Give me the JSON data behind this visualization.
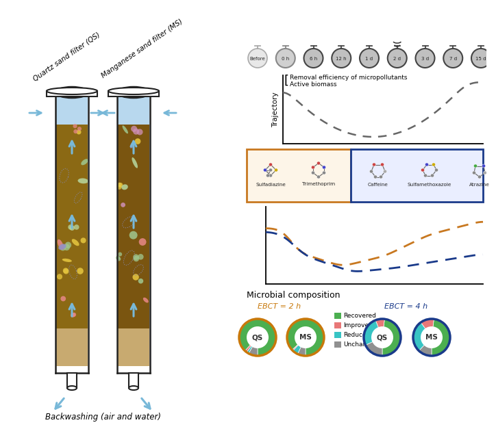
{
  "bg_color": "#ffffff",
  "filter_labels": [
    "Quartz sand filter (QS)",
    "Manganese sand filter (MS)"
  ],
  "backwash_label": "Backwashing (air and water)",
  "time_points": [
    "Before",
    "0 h",
    "6 h",
    "12 h",
    "1 d",
    "2 d",
    "3 d",
    "7 d",
    "15 d"
  ],
  "trajectory_label": "Trajectory",
  "microbial_title": "Microbial composition",
  "ebct2_label": "EBCT = 2 h",
  "ebct4_label": "EBCT = 4 h",
  "ebct2_color": "#c8780a",
  "ebct4_color": "#1a3a8a",
  "legend_items": [
    "Recovered",
    "Improved",
    "Reduced",
    "Unchanged"
  ],
  "legend_colors": [
    "#4caf50",
    "#e87878",
    "#38c4c4",
    "#909090"
  ],
  "donut_qs2": [
    88,
    2,
    2,
    8
  ],
  "donut_ms2": [
    87,
    1,
    5,
    7
  ],
  "donut_qs4": [
    48,
    8,
    26,
    18
  ],
  "donut_ms4": [
    48,
    12,
    28,
    12
  ],
  "dashed_curve1_color": "#666666",
  "dashed_curve2_blue": "#1a3a8a",
  "dashed_curve2_orange": "#c87820",
  "sand_color_qs": "#8B6914",
  "sand_color_ms": "#7a5510",
  "gravel_color": "#c8aa70",
  "water_color": "#b8d8ee",
  "arrow_color": "#78b8d8",
  "compound_labels": [
    "Sulfadiazine",
    "Trimethoprim",
    "Caffeine",
    "Sulfamethoxazole",
    "Atrazine"
  ]
}
